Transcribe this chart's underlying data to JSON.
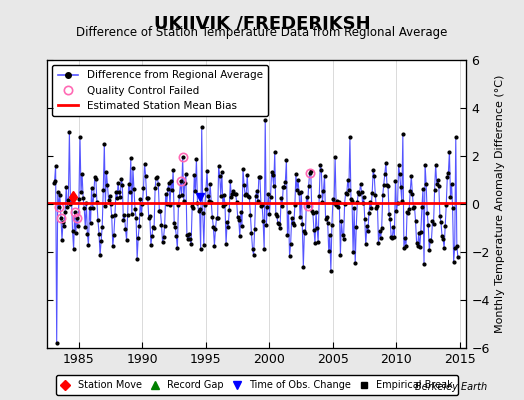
{
  "title": "UKIIVIK /FREDERIKSH",
  "subtitle": "Difference of Station Temperature Data from Regional Average",
  "ylabel_right": "Monthly Temperature Anomaly Difference (°C)",
  "xlim": [
    1982.5,
    2015.5
  ],
  "ylim": [
    -6,
    6
  ],
  "yticks": [
    -6,
    -4,
    -2,
    0,
    2,
    4,
    6
  ],
  "xticks": [
    1985,
    1990,
    1995,
    2000,
    2005,
    2010,
    2015
  ],
  "bias_value": 0.05,
  "line_color": "#5555ff",
  "dot_color": "#000000",
  "bias_color": "#ff0000",
  "qc_color": "#ff69b4",
  "background_color": "#e8e8e8",
  "plot_bg_color": "#ffffff",
  "watermark": "Berkeley Earth",
  "station_move_year": 1984.5,
  "obs_change_years": [
    1994.5
  ],
  "seed": 42
}
